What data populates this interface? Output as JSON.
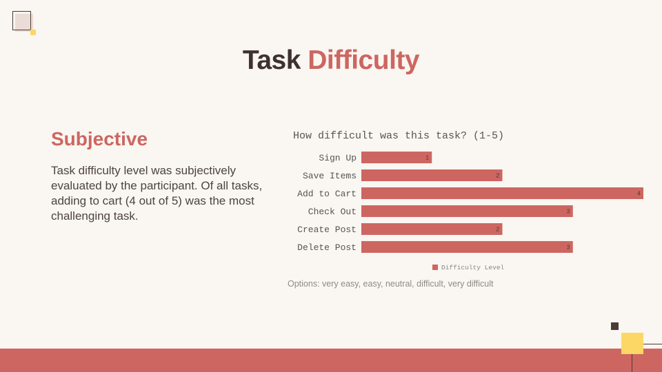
{
  "slide": {
    "title_main": "Task",
    "title_accent": "Difficulty",
    "subheading": "Subjective",
    "body": "Task difficulty level was subjectively evaluated by the participant. Of all tasks, adding to cart (4 out of 5) was the most challenging task.",
    "options_note": "Options: very easy, easy, neutral, difficult, very difficult"
  },
  "colors": {
    "accent": "#cd6661",
    "title_dark": "#3f3131",
    "highlight": "#fcd765",
    "background": "#faf6f1"
  },
  "chart_data": {
    "type": "bar",
    "orientation": "horizontal",
    "title": "How difficult was this task? (1-5)",
    "categories": [
      "Sign Up",
      "Save Items",
      "Add to Cart",
      "Check Out",
      "Create Post",
      "Delete Post"
    ],
    "series": [
      {
        "name": "Difficulty Level",
        "values": [
          1,
          2,
          4,
          3,
          2,
          3
        ],
        "color": "#cd6661"
      }
    ],
    "xlim": [
      0,
      4
    ],
    "grid": false,
    "legend": "bottom"
  }
}
